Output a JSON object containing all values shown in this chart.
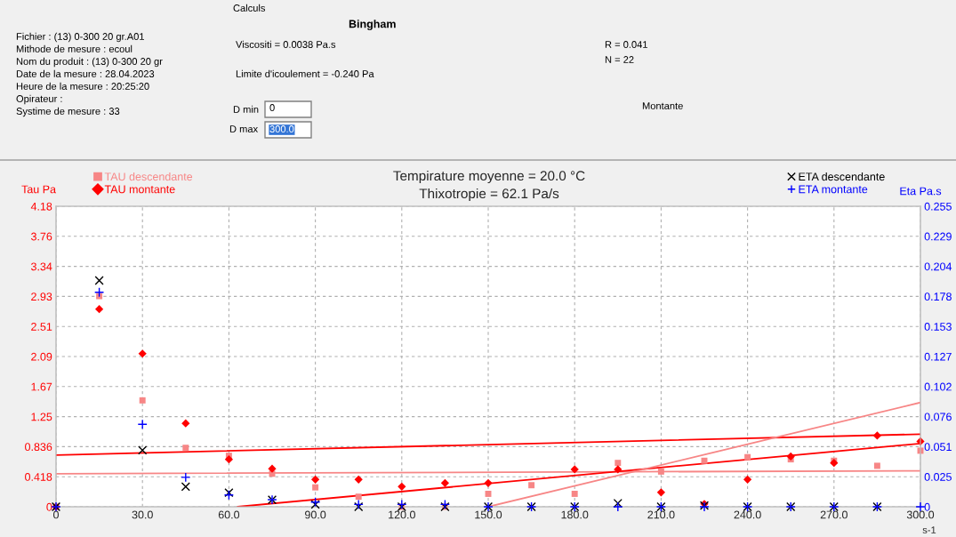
{
  "chart_data": {
    "type": "scatter",
    "title": "Tempirature moyenne = 20.0 °C",
    "subtitle": "Thixotropie = 62.1 Pa/s",
    "xlabel": "s-1",
    "ylabel": "Tau Pa",
    "y2label": "Eta Pa.s",
    "x": [
      0,
      15,
      30,
      45,
      60,
      75,
      90,
      105,
      120,
      135,
      150,
      165,
      180,
      195,
      210,
      225,
      240,
      255,
      270,
      285,
      300
    ],
    "series": [
      {
        "name": "TAU descendante",
        "color": "#f78686",
        "marker": "square",
        "values": [
          0,
          2.93,
          1.48,
          0.82,
          0.71,
          0.46,
          0.27,
          0.14,
          0,
          0,
          0.18,
          0.3,
          0.18,
          0.61,
          0.49,
          0.64,
          0.69,
          0.66,
          0.64,
          0.57,
          0.78
        ]
      },
      {
        "name": "TAU montante",
        "color": "#ff0000",
        "marker": "diamond",
        "values": [
          0,
          2.75,
          2.13,
          1.16,
          0.66,
          0.53,
          0.38,
          0.38,
          0.28,
          0.33,
          0.33,
          null,
          0.52,
          0.52,
          0.2,
          0.04,
          0.38,
          0.7,
          0.61,
          0.99,
          0.91
        ]
      },
      {
        "name": "ETA descendante",
        "color": "#000000",
        "marker": "cross",
        "axis": "y2",
        "values": [
          0,
          0.192,
          0.048,
          0.017,
          0.012,
          0.006,
          0.002,
          0,
          0,
          0,
          0,
          0,
          0,
          0.003,
          0,
          0.001,
          0,
          0,
          0,
          0,
          null
        ]
      },
      {
        "name": "ETA montante",
        "color": "#0000ff",
        "marker": "plus",
        "axis": "y2",
        "values": [
          0,
          0.182,
          0.07,
          0.025,
          0.01,
          0.006,
          0.004,
          0.002,
          0.002,
          0.002,
          0,
          0,
          0,
          0,
          0,
          0,
          0,
          0,
          0,
          0,
          0
        ]
      },
      {
        "type": "line",
        "color": "#ff0000",
        "x": [
          0,
          300
        ],
        "values": [
          0.72,
          1.01
        ]
      },
      {
        "type": "line",
        "color": "#f78686",
        "x": [
          0,
          300
        ],
        "values": [
          0.46,
          0.5
        ]
      },
      {
        "type": "line",
        "color": "#ff0000",
        "x": [
          63,
          300
        ],
        "values": [
          0,
          0.88
        ]
      },
      {
        "type": "line",
        "color": "#f78686",
        "x": [
          150,
          300
        ],
        "values": [
          0,
          1.45
        ]
      }
    ],
    "xlim": [
      0,
      300
    ],
    "xticks": [
      0,
      {
        "value": 30,
        "label": "30.0"
      },
      {
        "value": 60,
        "label": "60.0"
      },
      {
        "value": 90,
        "label": "90.0"
      },
      {
        "value": 120,
        "label": "120.0"
      },
      {
        "value": 150,
        "label": "150.0"
      },
      {
        "value": 180,
        "label": "180.0"
      },
      {
        "value": 210,
        "label": "210.0"
      },
      {
        "value": 240,
        "label": "240.0"
      },
      {
        "value": 270,
        "label": "270.0"
      },
      {
        "value": 300,
        "label": "300.0"
      }
    ],
    "ylim": [
      0,
      4.18
    ],
    "yticks": [
      0,
      0.418,
      0.836,
      {
        "value": 1.254,
        "label": "1.25"
      },
      {
        "value": 1.672,
        "label": "1.67"
      },
      {
        "value": 2.09,
        "label": "2.09"
      },
      {
        "value": 2.508,
        "label": "2.51"
      },
      {
        "value": 2.926,
        "label": "2.93"
      },
      {
        "value": 3.344,
        "label": "3.34"
      },
      {
        "value": 3.762,
        "label": "3.76"
      },
      4.18
    ],
    "y2lim": [
      0,
      0.255
    ],
    "y2ticks": [
      0,
      {
        "value": 0.0255,
        "label": "0.025"
      },
      0.051,
      {
        "value": 0.0765,
        "label": "0.076"
      },
      0.102,
      {
        "value": 0.1275,
        "label": "0.127"
      },
      0.153,
      {
        "value": 0.1785,
        "label": "0.178"
      },
      0.204,
      {
        "value": 0.2295,
        "label": "0.229"
      },
      0.255
    ],
    "grid": true,
    "legend": "top",
    "annotations": [
      "Fichier : (13) 0-300 20 gr.A01",
      "Mithode de mesure : ecoul",
      "Nom du produit : (13) 0-300 20 gr",
      "Date de la mesure : 28.04.2023",
      "Heure de la mesure : 20:25:20",
      "Opirateur :",
      "Systime de mesure : 33",
      "Calculs",
      "Bingham",
      "Viscositi = 0.0038 Pa.s",
      "Limite d'icoulement = -0.240 Pa",
      "R = 0.041",
      "N = 22",
      "D min",
      "0",
      "D max",
      "300.0",
      "Montante"
    ]
  }
}
